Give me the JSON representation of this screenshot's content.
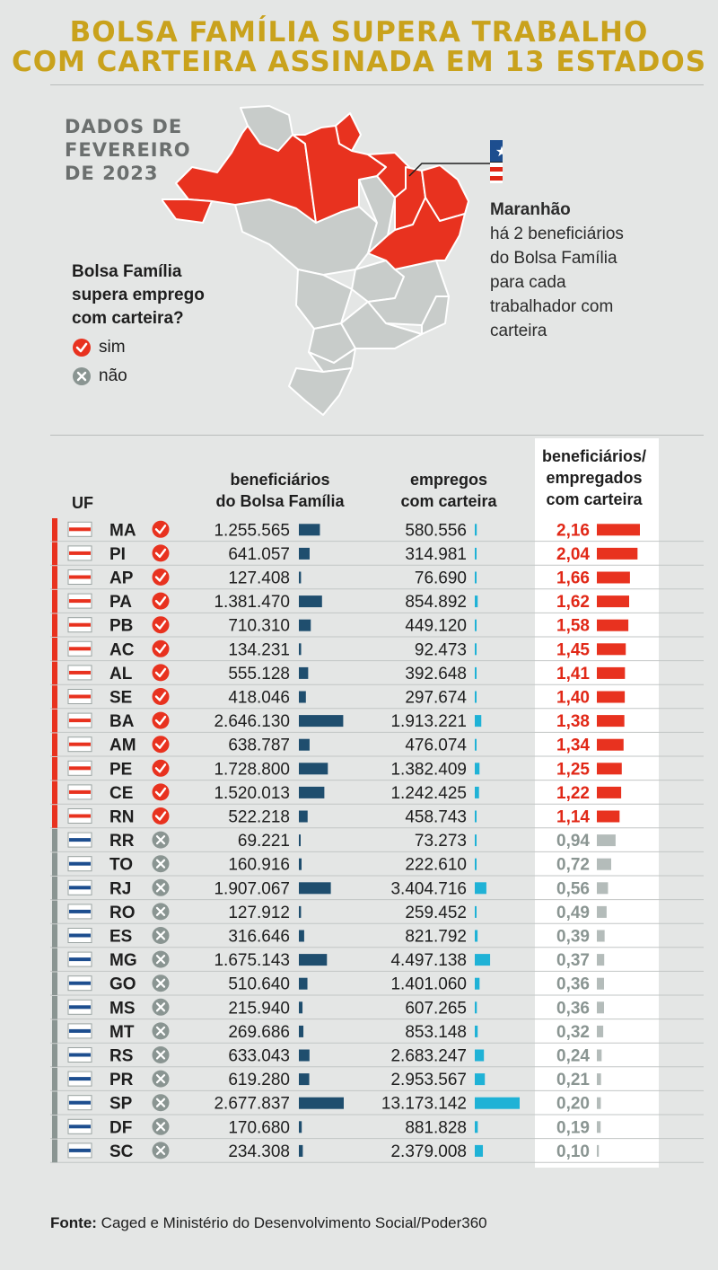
{
  "title": {
    "line1": "BOLSA FAMÍLIA SUPERA TRABALHO",
    "line2": "COM CARTEIRA ASSINADA EM 13 ESTADOS"
  },
  "map": {
    "date_line1": "DADOS DE",
    "date_line2": "FEVEREIRO",
    "date_line3": "DE 2023",
    "legend_question_1": "Bolsa Família",
    "legend_question_2": "supera emprego",
    "legend_question_3": "com carteira?",
    "legend_yes": "sim",
    "legend_no": "não",
    "highlight_state": "Maranhão",
    "highlight_l1": "há 2 beneficiários",
    "highlight_l2": "do Bolsa Família",
    "highlight_l3": "para cada",
    "highlight_l4": "trabalhador com",
    "highlight_l5": "carteira"
  },
  "colors": {
    "yes": "#e8321f",
    "no": "#8a9592",
    "bar_beneficiaries": "#1f4e6e",
    "bar_jobs": "#1fb2d6",
    "ratio_yes_text": "#e12817",
    "ratio_no_bar": "#b4bcba",
    "ratio_no_text": "#8a9592",
    "title": "#c9a21c"
  },
  "chart_data": {
    "type": "table",
    "title": "Bolsa Família supera trabalho com carteira assinada em 13 estados",
    "columns": {
      "uf": "UF",
      "beneficiaries_1": "beneficiários",
      "beneficiaries_2": "do Bolsa Família",
      "jobs_1": "empregos",
      "jobs_2": "com carteira",
      "ratio_1": "beneficiários/",
      "ratio_2": "empregados",
      "ratio_3": "com carteira"
    },
    "rows": [
      {
        "uf": "MA",
        "supera": true,
        "beneficiarios": "1.255.565",
        "beneficiarios_n": 1255565,
        "empregos": "580.556",
        "empregos_n": 580556,
        "razao": "2,16",
        "razao_n": 2.16
      },
      {
        "uf": "PI",
        "supera": true,
        "beneficiarios": "641.057",
        "beneficiarios_n": 641057,
        "empregos": "314.981",
        "empregos_n": 314981,
        "razao": "2,04",
        "razao_n": 2.04
      },
      {
        "uf": "AP",
        "supera": true,
        "beneficiarios": "127.408",
        "beneficiarios_n": 127408,
        "empregos": "76.690",
        "empregos_n": 76690,
        "razao": "1,66",
        "razao_n": 1.66
      },
      {
        "uf": "PA",
        "supera": true,
        "beneficiarios": "1.381.470",
        "beneficiarios_n": 1381470,
        "empregos": "854.892",
        "empregos_n": 854892,
        "razao": "1,62",
        "razao_n": 1.62
      },
      {
        "uf": "PB",
        "supera": true,
        "beneficiarios": "710.310",
        "beneficiarios_n": 710310,
        "empregos": "449.120",
        "empregos_n": 449120,
        "razao": "1,58",
        "razao_n": 1.58
      },
      {
        "uf": "AC",
        "supera": true,
        "beneficiarios": "134.231",
        "beneficiarios_n": 134231,
        "empregos": "92.473",
        "empregos_n": 92473,
        "razao": "1,45",
        "razao_n": 1.45
      },
      {
        "uf": "AL",
        "supera": true,
        "beneficiarios": "555.128",
        "beneficiarios_n": 555128,
        "empregos": "392.648",
        "empregos_n": 392648,
        "razao": "1,41",
        "razao_n": 1.41
      },
      {
        "uf": "SE",
        "supera": true,
        "beneficiarios": "418.046",
        "beneficiarios_n": 418046,
        "empregos": "297.674",
        "empregos_n": 297674,
        "razao": "1,40",
        "razao_n": 1.4
      },
      {
        "uf": "BA",
        "supera": true,
        "beneficiarios": "2.646.130",
        "beneficiarios_n": 2646130,
        "empregos": "1.913.221",
        "empregos_n": 1913221,
        "razao": "1,38",
        "razao_n": 1.38
      },
      {
        "uf": "AM",
        "supera": true,
        "beneficiarios": "638.787",
        "beneficiarios_n": 638787,
        "empregos": "476.074",
        "empregos_n": 476074,
        "razao": "1,34",
        "razao_n": 1.34
      },
      {
        "uf": "PE",
        "supera": true,
        "beneficiarios": "1.728.800",
        "beneficiarios_n": 1728800,
        "empregos": "1.382.409",
        "empregos_n": 1382409,
        "razao": "1,25",
        "razao_n": 1.25
      },
      {
        "uf": "CE",
        "supera": true,
        "beneficiarios": "1.520.013",
        "beneficiarios_n": 1520013,
        "empregos": "1.242.425",
        "empregos_n": 1242425,
        "razao": "1,22",
        "razao_n": 1.22
      },
      {
        "uf": "RN",
        "supera": true,
        "beneficiarios": "522.218",
        "beneficiarios_n": 522218,
        "empregos": "458.743",
        "empregos_n": 458743,
        "razao": "1,14",
        "razao_n": 1.14
      },
      {
        "uf": "RR",
        "supera": false,
        "beneficiarios": "69.221",
        "beneficiarios_n": 69221,
        "empregos": "73.273",
        "empregos_n": 73273,
        "razao": "0,94",
        "razao_n": 0.94
      },
      {
        "uf": "TO",
        "supera": false,
        "beneficiarios": "160.916",
        "beneficiarios_n": 160916,
        "empregos": "222.610",
        "empregos_n": 222610,
        "razao": "0,72",
        "razao_n": 0.72
      },
      {
        "uf": "RJ",
        "supera": false,
        "beneficiarios": "1.907.067",
        "beneficiarios_n": 1907067,
        "empregos": "3.404.716",
        "empregos_n": 3404716,
        "razao": "0,56",
        "razao_n": 0.56
      },
      {
        "uf": "RO",
        "supera": false,
        "beneficiarios": "127.912",
        "beneficiarios_n": 127912,
        "empregos": "259.452",
        "empregos_n": 259452,
        "razao": "0,49",
        "razao_n": 0.49
      },
      {
        "uf": "ES",
        "supera": false,
        "beneficiarios": "316.646",
        "beneficiarios_n": 316646,
        "empregos": "821.792",
        "empregos_n": 821792,
        "razao": "0,39",
        "razao_n": 0.39
      },
      {
        "uf": "MG",
        "supera": false,
        "beneficiarios": "1.675.143",
        "beneficiarios_n": 1675143,
        "empregos": "4.497.138",
        "empregos_n": 4497138,
        "razao": "0,37",
        "razao_n": 0.37
      },
      {
        "uf": "GO",
        "supera": false,
        "beneficiarios": "510.640",
        "beneficiarios_n": 510640,
        "empregos": "1.401.060",
        "empregos_n": 1401060,
        "razao": "0,36",
        "razao_n": 0.36
      },
      {
        "uf": "MS",
        "supera": false,
        "beneficiarios": "215.940",
        "beneficiarios_n": 215940,
        "empregos": "607.265",
        "empregos_n": 607265,
        "razao": "0,36",
        "razao_n": 0.36
      },
      {
        "uf": "MT",
        "supera": false,
        "beneficiarios": "269.686",
        "beneficiarios_n": 269686,
        "empregos": "853.148",
        "empregos_n": 853148,
        "razao": "0,32",
        "razao_n": 0.32
      },
      {
        "uf": "RS",
        "supera": false,
        "beneficiarios": "633.043",
        "beneficiarios_n": 633043,
        "empregos": "2.683.247",
        "empregos_n": 2683247,
        "razao": "0,24",
        "razao_n": 0.24
      },
      {
        "uf": "PR",
        "supera": false,
        "beneficiarios": "619.280",
        "beneficiarios_n": 619280,
        "empregos": "2.953.567",
        "empregos_n": 2953567,
        "razao": "0,21",
        "razao_n": 0.21
      },
      {
        "uf": "SP",
        "supera": false,
        "beneficiarios": "2.677.837",
        "beneficiarios_n": 2677837,
        "empregos": "13.173.142",
        "empregos_n": 13173142,
        "razao": "0,20",
        "razao_n": 0.2
      },
      {
        "uf": "DF",
        "supera": false,
        "beneficiarios": "170.680",
        "beneficiarios_n": 170680,
        "empregos": "881.828",
        "empregos_n": 881828,
        "razao": "0,19",
        "razao_n": 0.19
      },
      {
        "uf": "SC",
        "supera": false,
        "beneficiarios": "234.308",
        "beneficiarios_n": 234308,
        "empregos": "2.379.008",
        "empregos_n": 2379008,
        "razao": "0,10",
        "razao_n": 0.1
      }
    ]
  },
  "source": {
    "label": "Fonte:",
    "text": "Caged e Ministério do Desenvolvimento Social/Poder360"
  }
}
